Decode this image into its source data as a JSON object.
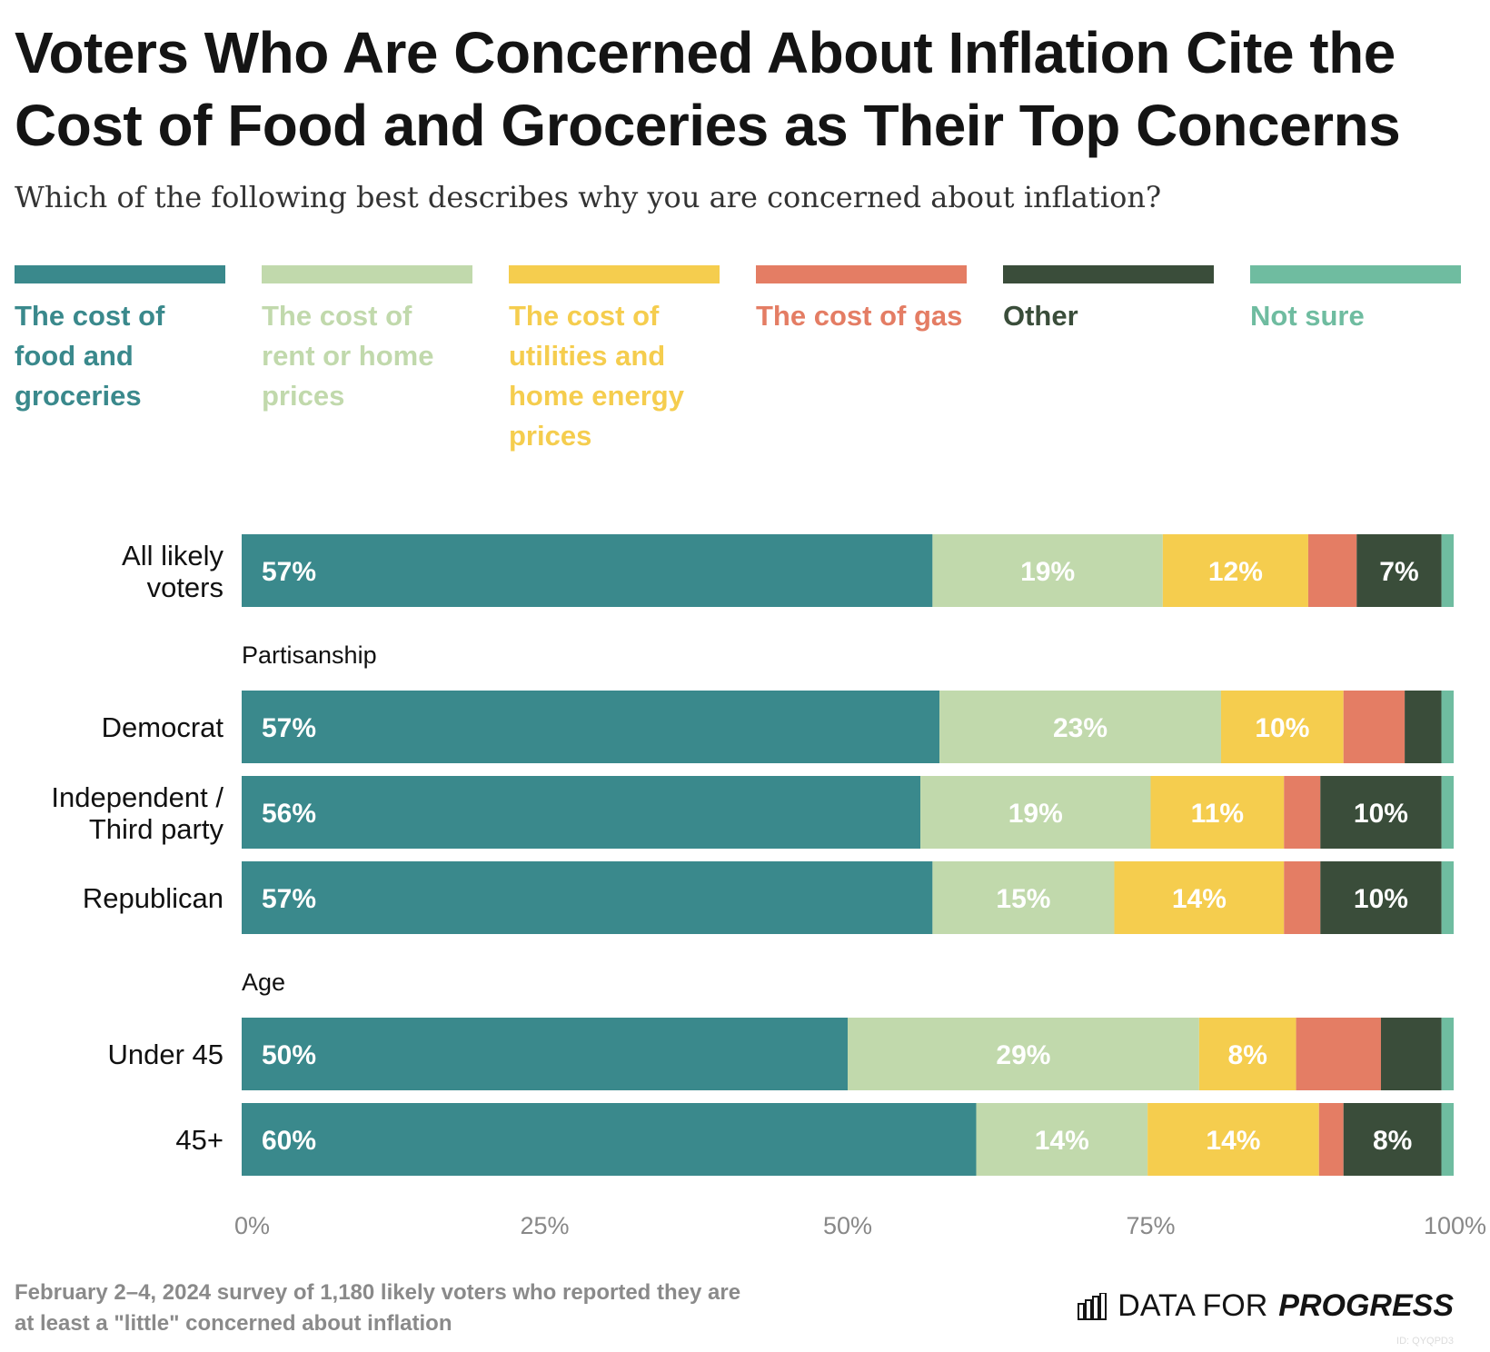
{
  "title": "Voters Who Are Concerned About Inflation Cite the Cost of Food and Groceries as Their Top Concerns",
  "subtitle": "Which of the following best describes why you are concerned about inflation?",
  "legend": [
    {
      "label": "The cost of food and groceries",
      "color": "#3a898c"
    },
    {
      "label": "The cost of rent or home prices",
      "color": "#c1d9ac"
    },
    {
      "label": "The cost of utilities and home energy prices",
      "color": "#f5cd4e"
    },
    {
      "label": "The cost of gas",
      "color": "#e47d64"
    },
    {
      "label": "Other",
      "color": "#3a4d3a"
    },
    {
      "label": "Not sure",
      "color": "#6fbca0"
    }
  ],
  "chart_data": {
    "type": "bar",
    "orientation": "horizontal",
    "stacked": true,
    "x_ticks": [
      "0%",
      "25%",
      "50%",
      "75%",
      "100%"
    ],
    "xlim": [
      0,
      100
    ],
    "groups": [
      {
        "label": "",
        "rows": [
          {
            "label": "All likely voters",
            "values": [
              57,
              19,
              12,
              4,
              7,
              1
            ],
            "labels": [
              "57%",
              "19%",
              "12%",
              "",
              "7%",
              ""
            ]
          }
        ]
      },
      {
        "label": "Partisanship",
        "rows": [
          {
            "label": "Democrat",
            "values": [
              57,
              23,
              10,
              5,
              3,
              1
            ],
            "labels": [
              "57%",
              "23%",
              "10%",
              "",
              "",
              ""
            ]
          },
          {
            "label": "Independent / Third party",
            "values": [
              56,
              19,
              11,
              3,
              10,
              1
            ],
            "labels": [
              "56%",
              "19%",
              "11%",
              "",
              "10%",
              ""
            ]
          },
          {
            "label": "Republican",
            "values": [
              57,
              15,
              14,
              3,
              10,
              1
            ],
            "labels": [
              "57%",
              "15%",
              "14%",
              "",
              "10%",
              ""
            ]
          }
        ]
      },
      {
        "label": "Age",
        "rows": [
          {
            "label": "Under 45",
            "values": [
              50,
              29,
              8,
              7,
              5,
              1
            ],
            "labels": [
              "50%",
              "29%",
              "8%",
              "",
              "",
              ""
            ]
          },
          {
            "label": "45+",
            "values": [
              60,
              14,
              14,
              2,
              8,
              1
            ],
            "labels": [
              "60%",
              "14%",
              "14%",
              "",
              "8%",
              ""
            ]
          }
        ]
      }
    ]
  },
  "footnote": "February 2–4, 2024 survey of 1,180 likely voters who reported they are at least a \"little\" concerned about inflation",
  "brand": {
    "light": "DATA FOR",
    "strong": "PROGRESS"
  },
  "chart_id": "ID: QYQPD3"
}
